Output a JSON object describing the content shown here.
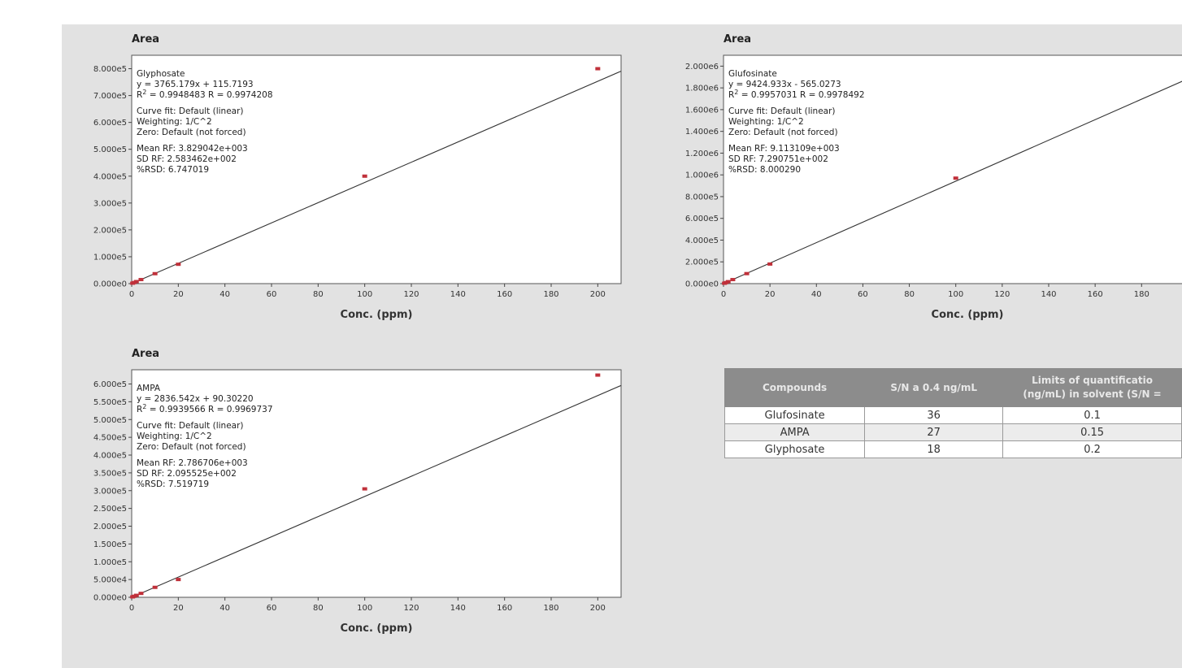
{
  "chart_data": [
    {
      "type": "scatter",
      "ylabel": "Area",
      "xlabel": "Conc. (ppm)",
      "xlim": [
        0,
        210
      ],
      "ylim": [
        0,
        850000
      ],
      "xticks": [
        "0",
        "20",
        "40",
        "60",
        "80",
        "100",
        "120",
        "140",
        "160",
        "180",
        "200"
      ],
      "yticks": [
        "0.000e0",
        "1.000e5",
        "2.000e5",
        "3.000e5",
        "4.000e5",
        "5.000e5",
        "6.000e5",
        "7.000e5",
        "8.000e5"
      ],
      "series": [
        {
          "x": [
            0.4,
            1,
            2,
            4,
            10,
            20,
            100,
            200
          ],
          "y": [
            1600,
            3900,
            7600,
            15000,
            37000,
            72000,
            400000,
            800000
          ]
        }
      ],
      "fit": {
        "slope": 3765.179,
        "intercept": 115.7193
      },
      "annotation": {
        "compound": "Glyphosate",
        "equation": "y = 3765.179x + 115.7193",
        "r2_label": "R",
        "r2_sup": "2",
        "r2_value": " = 0.9948483     R = 0.9974208",
        "curve_fit": "Curve fit: Default (linear)",
        "weighting": "Weighting: 1/C^2",
        "zero": "Zero: Default (not forced)",
        "mean_rf": "Mean RF: 3.829042e+003",
        "sd_rf": "SD RF: 2.583462e+002",
        "rsd": "%RSD: 6.747019"
      }
    },
    {
      "type": "scatter",
      "ylabel": "Area",
      "xlabel": "Conc. (ppm)",
      "xlim": [
        0,
        210
      ],
      "ylim": [
        0,
        2100000
      ],
      "xticks": [
        "0",
        "20",
        "40",
        "60",
        "80",
        "100",
        "120",
        "140",
        "160",
        "180"
      ],
      "yticks": [
        "0.000e0",
        "2.000e5",
        "4.000e5",
        "6.000e5",
        "8.000e5",
        "1.000e6",
        "1.200e6",
        "1.400e6",
        "1.600e6",
        "1.800e6",
        "2.000e6"
      ],
      "series": [
        {
          "x": [
            0.4,
            1,
            2,
            4,
            10,
            20,
            100
          ],
          "y": [
            3500,
            9000,
            18000,
            37000,
            92000,
            180000,
            970000
          ]
        }
      ],
      "fit": {
        "slope": 9424.933,
        "intercept": -565.0273
      },
      "annotation": {
        "compound": "Glufosinate",
        "equation": "y = 9424.933x - 565.0273",
        "r2_label": "R",
        "r2_sup": "2",
        "r2_value": " = 0.9957031     R = 0.9978492",
        "curve_fit": "Curve fit: Default (linear)",
        "weighting": "Weighting: 1/C^2",
        "zero": "Zero: Default (not forced)",
        "mean_rf": "Mean RF: 9.113109e+003",
        "sd_rf": "SD RF: 7.290751e+002",
        "rsd": "%RSD: 8.000290"
      }
    },
    {
      "type": "scatter",
      "ylabel": "Area",
      "xlabel": "Conc. (ppm)",
      "xlim": [
        0,
        210
      ],
      "ylim": [
        0,
        640000
      ],
      "xticks": [
        "0",
        "20",
        "40",
        "60",
        "80",
        "100",
        "120",
        "140",
        "160",
        "180",
        "200"
      ],
      "yticks": [
        "0.000e0",
        "5.000e4",
        "1.000e5",
        "1.500e5",
        "2.000e5",
        "2.500e5",
        "3.000e5",
        "3.500e5",
        "4.000e5",
        "4.500e5",
        "5.000e5",
        "5.500e5",
        "6.000e5"
      ],
      "series": [
        {
          "x": [
            0.4,
            1,
            2,
            4,
            10,
            20,
            100,
            200
          ],
          "y": [
            1200,
            2800,
            5600,
            11000,
            28000,
            50000,
            305000,
            625000
          ]
        }
      ],
      "fit": {
        "slope": 2836.542,
        "intercept": 90.3022
      },
      "annotation": {
        "compound": "AMPA",
        "equation": "y = 2836.542x + 90.30220",
        "r2_label": "R",
        "r2_sup": "2",
        "r2_value": " = 0.9939566     R = 0.9969737",
        "curve_fit": "Curve fit: Default (linear)",
        "weighting": "Weighting: 1/C^2",
        "zero": "Zero: Default (not forced)",
        "mean_rf": "Mean RF: 2.786706e+003",
        "sd_rf": "SD RF: 2.095525e+002",
        "rsd": "%RSD: 7.519719"
      }
    }
  ],
  "table": {
    "headers": [
      "Compounds",
      "S/N a 0.4 ng/mL",
      "Limits of quantificatio",
      "(ng/mL) in solvent (S/N ="
    ],
    "rows": [
      [
        "Glufosinate",
        "36",
        "0.1"
      ],
      [
        "AMPA",
        "27",
        "0.15"
      ],
      [
        "Glyphosate",
        "18",
        "0.2"
      ]
    ]
  },
  "colors": {
    "marker": "#c0303a",
    "fit_line": "#333333",
    "panel": "#e2e2e2",
    "header_bg": "#8c8c8c"
  }
}
